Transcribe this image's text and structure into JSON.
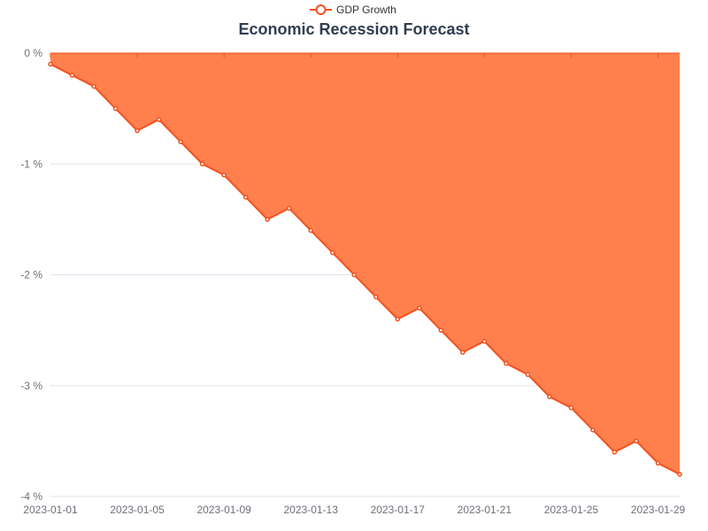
{
  "chart_data": {
    "type": "area",
    "title": "Economic Recession Forecast",
    "legend": {
      "position": "top-center",
      "entries": [
        "GDP Growth"
      ]
    },
    "x": [
      "2023-01-01",
      "2023-01-02",
      "2023-01-03",
      "2023-01-04",
      "2023-01-05",
      "2023-01-06",
      "2023-01-07",
      "2023-01-08",
      "2023-01-09",
      "2023-01-10",
      "2023-01-11",
      "2023-01-12",
      "2023-01-13",
      "2023-01-14",
      "2023-01-15",
      "2023-01-16",
      "2023-01-17",
      "2023-01-18",
      "2023-01-19",
      "2023-01-20",
      "2023-01-21",
      "2023-01-22",
      "2023-01-23",
      "2023-01-24",
      "2023-01-25",
      "2023-01-26",
      "2023-01-27",
      "2023-01-28",
      "2023-01-29",
      "2023-01-30"
    ],
    "x_tick_labels": [
      "2023-01-01",
      "2023-01-05",
      "2023-01-09",
      "2023-01-13",
      "2023-01-17",
      "2023-01-21",
      "2023-01-25",
      "2023-01-29"
    ],
    "series": [
      {
        "name": "GDP Growth",
        "values": [
          -0.1,
          -0.2,
          -0.3,
          -0.5,
          -0.7,
          -0.6,
          -0.8,
          -1.0,
          -1.1,
          -1.3,
          -1.5,
          -1.4,
          -1.6,
          -1.8,
          -2.0,
          -2.2,
          -2.4,
          -2.3,
          -2.5,
          -2.7,
          -2.6,
          -2.8,
          -2.9,
          -3.1,
          -3.2,
          -3.4,
          -3.6,
          -3.5,
          -3.7,
          -3.8
        ]
      }
    ],
    "ylim": [
      -4,
      0
    ],
    "y_ticks": [
      0,
      -1,
      -2,
      -3,
      -4
    ],
    "y_tick_labels": [
      "0 %",
      "-1 %",
      "-2 %",
      "-3 %",
      "-4 %"
    ],
    "xlabel": "",
    "ylabel": "",
    "grid": true,
    "colors": {
      "line": "#f4511e",
      "area": "#ff7f4d",
      "grid": "#e0e6f1",
      "axis": "#6e7079",
      "title": "#2f3e4f"
    }
  }
}
